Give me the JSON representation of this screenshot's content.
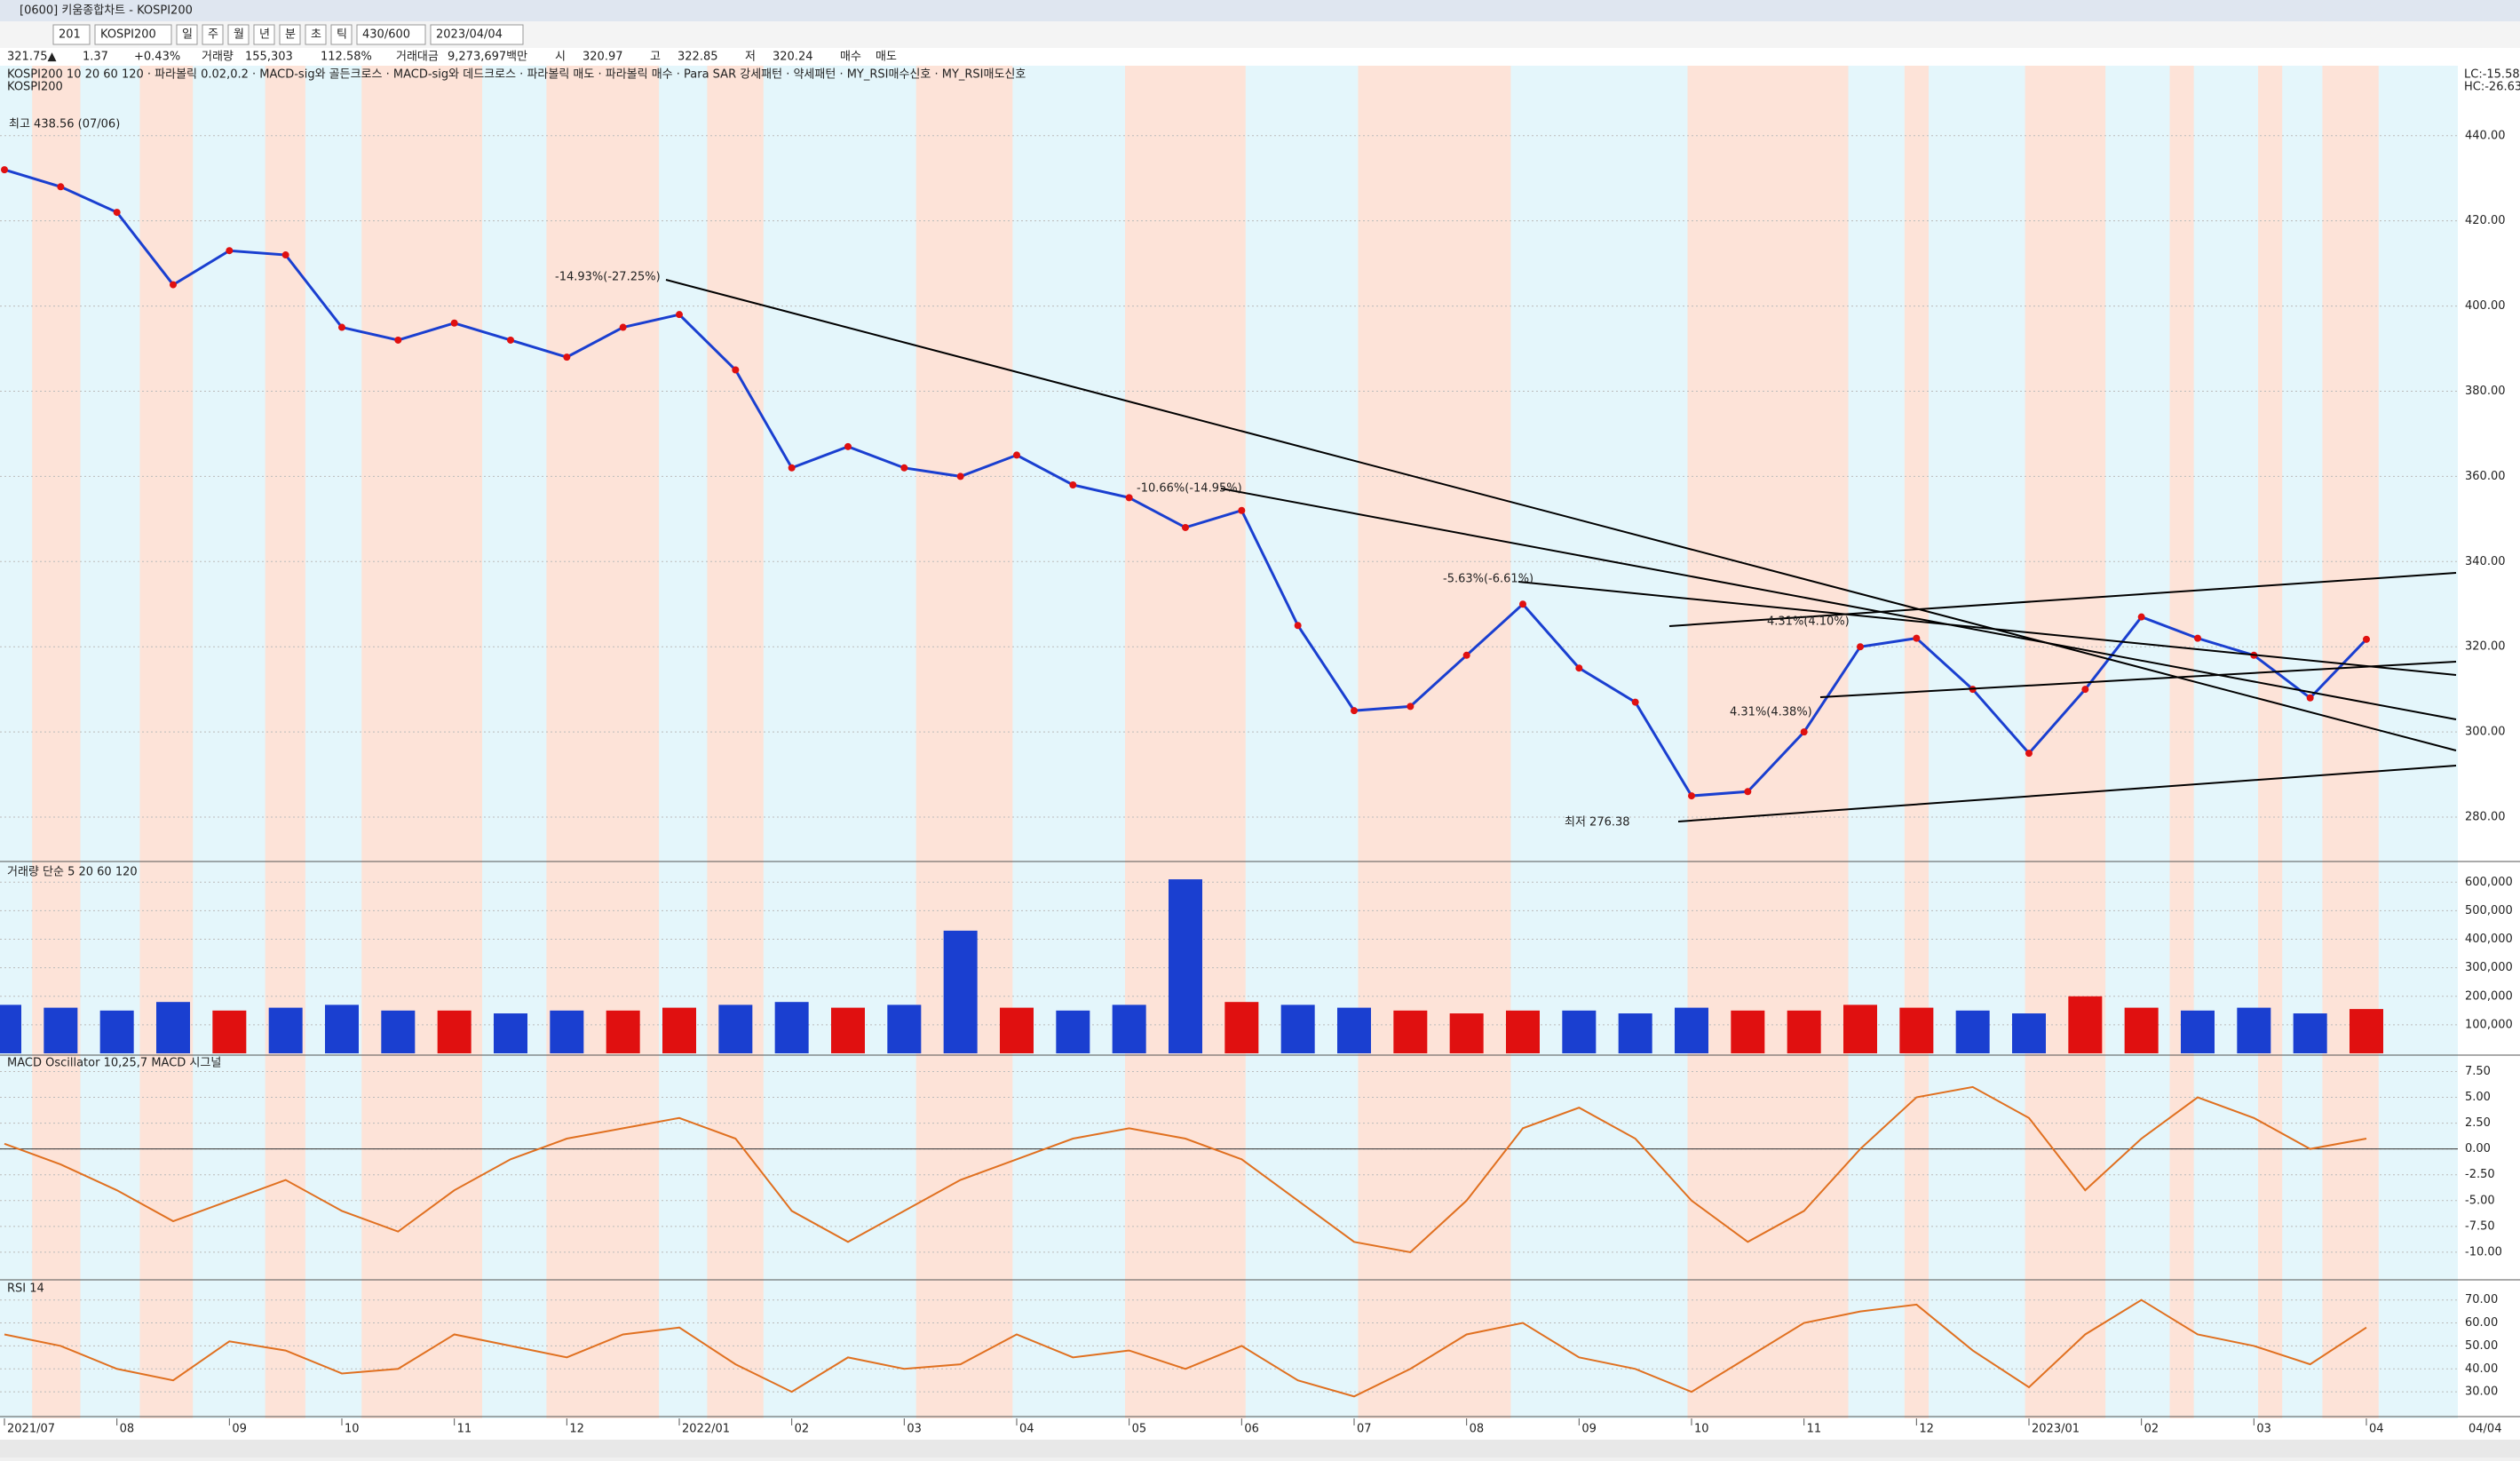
{
  "window": {
    "title": "[0600] 키움종합차트 - KOSPI200",
    "toolbar": [
      "201",
      "KOSPI200",
      "일",
      "주",
      "월",
      "년",
      "분",
      "초",
      "틱",
      "430/600",
      "2023/04/04"
    ],
    "info": [
      "321.75▲",
      "1.37",
      "+0.43%",
      "거래량",
      "155,303",
      "112.58%",
      "거래대금",
      "9,273,697백만",
      "시",
      "320.97",
      "고",
      "322.85",
      "저",
      "320.24",
      "매수",
      "매도"
    ],
    "legend": "KOSPI200 10 20 60 120 · 파라볼릭 0.02,0.2 · MACD-sig와 골든크로스 · MACD-sig와 데드크로스 · 파라볼릭 매도 · 파라볼릭 매수 · Para SAR 강세패턴 · 약세패턴 · MY_RSI매수신호 · MY_RSI매도신호",
    "annotations": [
      "최고 438.56 (07/06)",
      "-14.93%(-27.25%)",
      "-10.66%(-14.95%)",
      "-5.63%(-6.61%)",
      "4.31%(4.10%)",
      "4.31%(4.38%)",
      "최저 276.38"
    ],
    "corner": [
      "LC:-15.58",
      "HC:-26.63"
    ],
    "end_date": "04/04"
  },
  "chart_data": [
    {
      "type": "line",
      "title": "KOSPI200",
      "categories": [
        "2021/07",
        null,
        "08",
        null,
        "09",
        null,
        "10",
        null,
        "11",
        null,
        "12",
        null,
        "2022/01",
        null,
        "02",
        null,
        "03",
        null,
        "04",
        null,
        "05",
        null,
        "06",
        null,
        "07",
        null,
        "08",
        null,
        "09",
        null,
        "10",
        null,
        "11",
        null,
        "12",
        null,
        "2023/01",
        null,
        "02",
        null,
        "03",
        null,
        "04"
      ],
      "values": [
        432,
        428,
        422,
        405,
        413,
        412,
        395,
        392,
        396,
        392,
        388,
        395,
        398,
        385,
        362,
        367,
        362,
        360,
        365,
        358,
        355,
        348,
        352,
        325,
        305,
        306,
        318,
        330,
        315,
        307,
        285,
        286,
        300,
        320,
        322,
        310,
        295,
        310,
        327,
        322,
        318,
        308,
        321.75
      ],
      "color": "#1a3fd0",
      "ylim": [
        270,
        451
      ],
      "yticks": [
        {
          "value": 280,
          "label": "280.00"
        },
        {
          "value": 300,
          "label": "300.00"
        },
        {
          "value": 320,
          "label": "320.00"
        },
        {
          "value": 340,
          "label": "340.00"
        },
        {
          "value": 360,
          "label": "360.00"
        },
        {
          "value": 380,
          "label": "380.00"
        },
        {
          "value": 400,
          "label": "400.00"
        },
        {
          "value": 420,
          "label": "420.00"
        },
        {
          "value": 440,
          "label": "440.00"
        }
      ]
    },
    {
      "type": "bar",
      "title": "거래량 단순 5 20 60 120",
      "values": [
        170000,
        160000,
        150000,
        180000,
        150000,
        160000,
        170000,
        150000,
        150000,
        140000,
        150000,
        150000,
        160000,
        170000,
        180000,
        160000,
        170000,
        430000,
        160000,
        150000,
        170000,
        610000,
        180000,
        170000,
        160000,
        150000,
        140000,
        150000,
        150000,
        140000,
        160000,
        150000,
        150000,
        170000,
        160000,
        150000,
        140000,
        200000,
        160000,
        150000,
        160000,
        140000,
        155303
      ],
      "color": "#1a3fd0",
      "ylim": [
        0,
        660000
      ],
      "yticks": [
        {
          "value": 100000,
          "label": "100,000"
        },
        {
          "value": 200000,
          "label": "200,000"
        },
        {
          "value": 300000,
          "label": "300,000"
        },
        {
          "value": 400000,
          "label": "400,000"
        },
        {
          "value": 500000,
          "label": "500,000"
        },
        {
          "value": 600000,
          "label": "600,000"
        }
      ]
    },
    {
      "type": "line",
      "title": "MACD Oscillator 10,25,7 MACD 시그널",
      "values": [
        0.5,
        -1.5,
        -4,
        -7,
        -5,
        -3,
        -6,
        -8,
        -4,
        -1,
        1,
        2,
        3,
        1,
        -6,
        -9,
        -6,
        -3,
        -1,
        1,
        2,
        1,
        -1,
        -5,
        -9,
        -10,
        -5,
        2,
        4,
        1,
        -5,
        -9,
        -6,
        0,
        5,
        6,
        3,
        -4,
        1,
        5,
        3,
        0,
        1
      ],
      "color": "#e07020",
      "ylim": [
        -12.5,
        9
      ],
      "yticks": [
        {
          "value": -10,
          "label": "-10.00"
        },
        {
          "value": -7.5,
          "label": "-7.50"
        },
        {
          "value": -5,
          "label": "-5.00"
        },
        {
          "value": -2.5,
          "label": "-2.50"
        },
        {
          "value": 0,
          "label": "0.00"
        },
        {
          "value": 2.5,
          "label": "2.50"
        },
        {
          "value": 5,
          "label": "5.00"
        },
        {
          "value": 7.5,
          "label": "7.50"
        }
      ]
    },
    {
      "type": "line",
      "title": "RSI 14",
      "values": [
        55,
        50,
        40,
        35,
        52,
        48,
        38,
        40,
        55,
        50,
        45,
        55,
        58,
        42,
        30,
        45,
        40,
        42,
        55,
        45,
        48,
        40,
        50,
        35,
        28,
        40,
        55,
        60,
        45,
        40,
        30,
        45,
        60,
        65,
        68,
        48,
        32,
        55,
        70,
        55,
        50,
        42,
        58
      ],
      "color": "#e07020",
      "ylim": [
        20,
        78
      ],
      "yticks": [
        {
          "value": 30,
          "label": "30.00"
        },
        {
          "value": 40,
          "label": "40.00"
        },
        {
          "value": 50,
          "label": "50.00"
        },
        {
          "value": 60,
          "label": "60.00"
        },
        {
          "value": 70,
          "label": "70.00"
        }
      ]
    }
  ]
}
